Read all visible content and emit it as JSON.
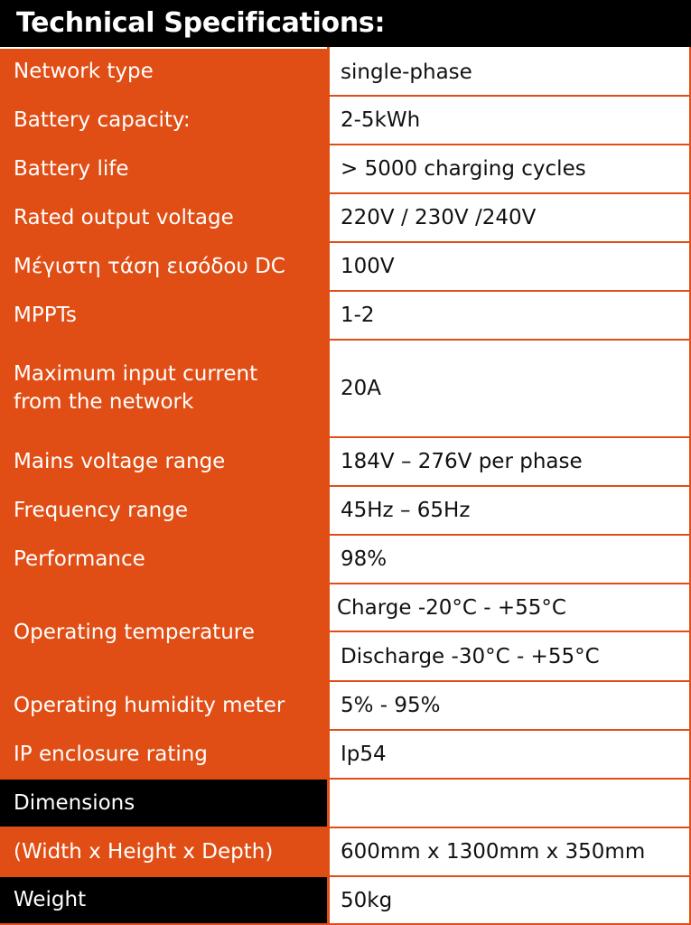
{
  "title": "Technical Specifications:",
  "rows": [
    {
      "label": "Network type",
      "value": "single-phase"
    },
    {
      "label": "Battery capacity:",
      "value": "2-5kWh"
    },
    {
      "label": "Battery life",
      "value": "> 5000 charging cycles"
    },
    {
      "label": "Rated output voltage",
      "value": "220V / 230V /240V"
    },
    {
      "label": "Μέγιστη τάση εισόδου DC",
      "value": "100V"
    },
    {
      "label": "MPPTs",
      "value": "1-2"
    },
    {
      "label": "Maximum input current from the network",
      "value": "20A"
    },
    {
      "label": "Mains voltage range",
      "value": "184V – 276V per phase"
    },
    {
      "label": "Frequency range",
      "value": "45Hz – 65Hz"
    },
    {
      "label": "Performance",
      "value": "98%"
    },
    {
      "label": "Operating temperature",
      "value": "Charge -20°C - +55°C",
      "value2": "Discharge -30°C - +55°C"
    },
    {
      "label": "Operating humidity meter",
      "value": "5% - 95%"
    },
    {
      "label": "IP enclosure rating",
      "value": "Ip54"
    },
    {
      "label": "Dimensions",
      "value": ""
    },
    {
      "label": "(Width x Height x Depth)",
      "value": "600mm x 1300mm x 350mm"
    },
    {
      "label": "Weight",
      "value": "50kg"
    }
  ]
}
